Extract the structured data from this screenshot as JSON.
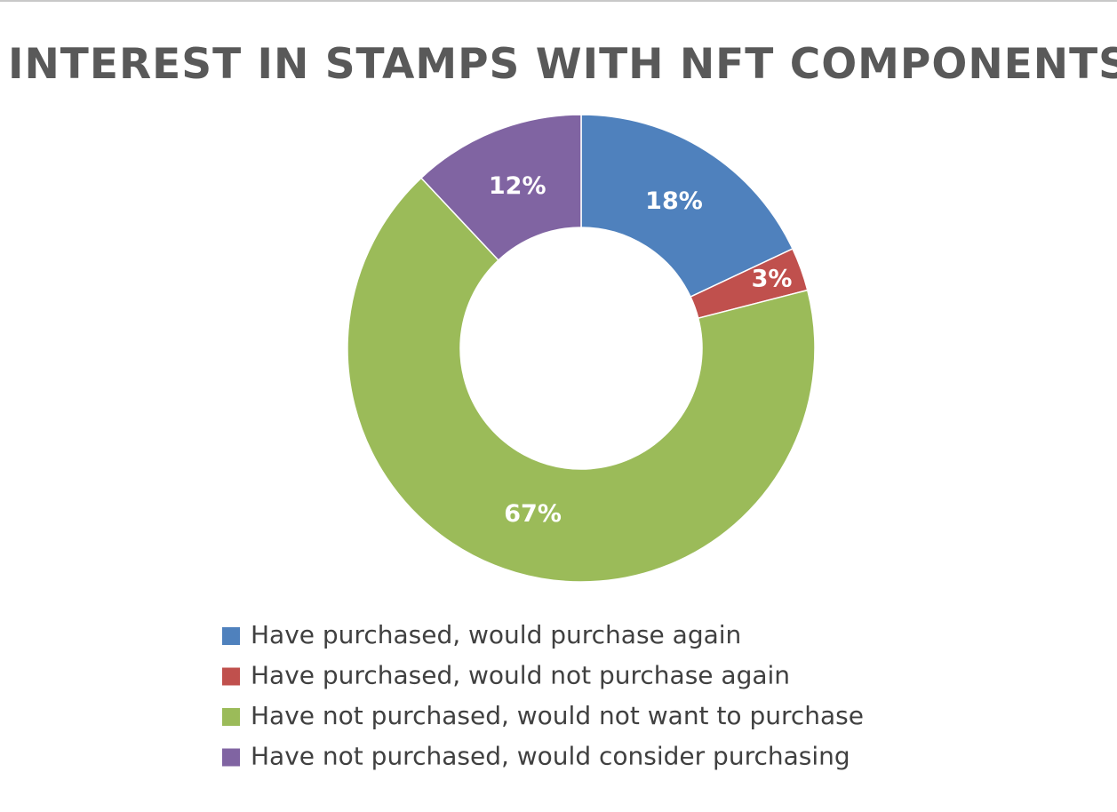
{
  "chart_data": {
    "type": "donut",
    "title": "INTEREST IN STAMPS WITH NFT COMPONENTS",
    "categories": [
      "Have purchased, would purchase again",
      "Have purchased, would not purchase again",
      "Have not purchased, would not want to purchase",
      "Have not purchased, would consider purchasing"
    ],
    "values": [
      18,
      3,
      67,
      12
    ],
    "value_labels": [
      "18%",
      "3%",
      "67%",
      "12%"
    ],
    "colors": [
      "#4f81bd",
      "#c0504d",
      "#9bbb59",
      "#8064a2"
    ]
  }
}
